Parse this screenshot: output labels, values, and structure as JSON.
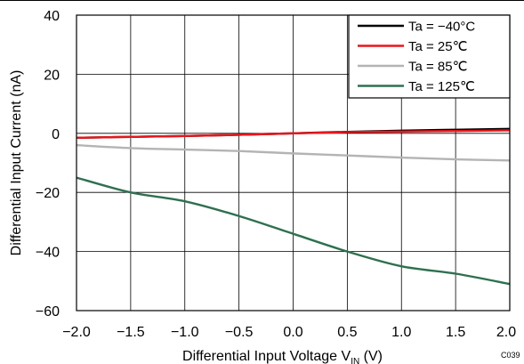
{
  "chart_data": {
    "type": "line",
    "xlabel": "Differential  Input Voltage V",
    "xlabel_sub": "IN",
    "xlabel_unit": " (V)",
    "ylabel": "Differential Input Current (nA)",
    "xlim": [
      -2.0,
      2.0
    ],
    "ylim": [
      -60,
      40
    ],
    "x_ticks": [
      "−2.0",
      "−1.5",
      "−1.0",
      "−0.5",
      "0.0",
      "0.5",
      "1.0",
      "1.5",
      "2.0"
    ],
    "y_ticks": [
      "40",
      "20",
      "0",
      "−20",
      "−40",
      "−60"
    ],
    "grid": true,
    "legend_position": "top-right",
    "corner_code": "C039",
    "x": [
      -2.0,
      -1.5,
      -1.0,
      -0.5,
      0.0,
      0.5,
      1.0,
      1.5,
      2.0
    ],
    "series": [
      {
        "name": "Ta = −40°C",
        "color": "#000000",
        "values": [
          -1.5,
          -1.2,
          -0.9,
          -0.5,
          0.0,
          0.5,
          0.9,
          1.2,
          1.5
        ]
      },
      {
        "name": "Ta = 25℃",
        "color": "#e8161b",
        "values": [
          -1.5,
          -1.2,
          -0.9,
          -0.5,
          0.0,
          0.4,
          0.6,
          0.8,
          1.0
        ]
      },
      {
        "name": "Ta = 85℃",
        "color": "#b4b4b4",
        "values": [
          -4.0,
          -5.0,
          -5.5,
          -6.0,
          -6.8,
          -7.5,
          -8.2,
          -8.8,
          -9.2
        ]
      },
      {
        "name": "Ta = 125℃",
        "color": "#2e7050",
        "values": [
          -15.0,
          -20.0,
          -23.0,
          -28.0,
          -34.0,
          -40.0,
          -45.0,
          -47.5,
          -51.0
        ]
      }
    ]
  }
}
